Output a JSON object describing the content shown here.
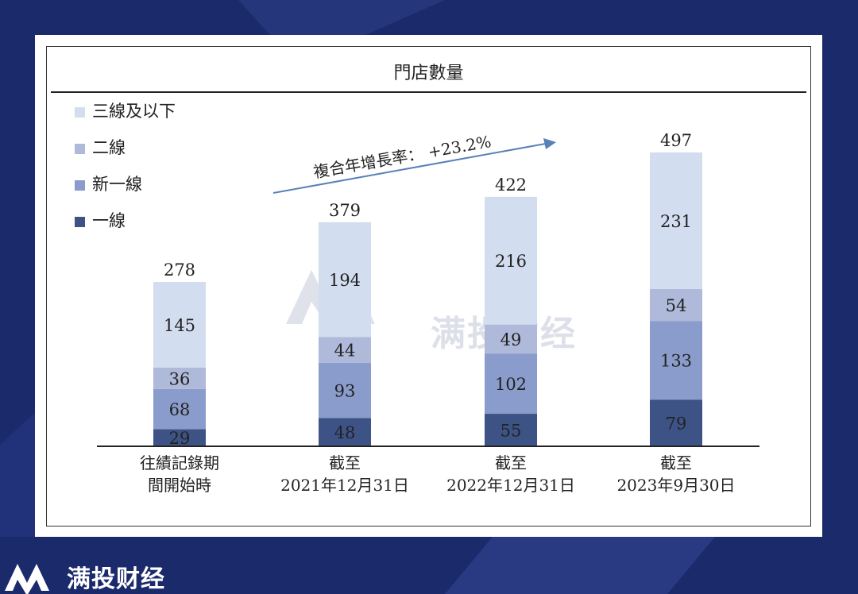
{
  "chart_data": {
    "type": "bar",
    "stacked": true,
    "title": "門店數量",
    "categories": [
      [
        "往績記錄期",
        "間開始時"
      ],
      [
        "截至",
        "2021年12月31日"
      ],
      [
        "截至",
        "2022年12月31日"
      ],
      [
        "截至",
        "2023年9月30日"
      ]
    ],
    "series": [
      {
        "name": "一線",
        "color": "#3d5386",
        "values": [
          29,
          48,
          55,
          79
        ]
      },
      {
        "name": "新一線",
        "color": "#8a9ccb",
        "values": [
          68,
          93,
          102,
          133
        ]
      },
      {
        "name": "二線",
        "color": "#afb9d9",
        "values": [
          36,
          44,
          49,
          54
        ]
      },
      {
        "name": "三線及以下",
        "color": "#d3ddf0",
        "values": [
          145,
          194,
          216,
          231
        ]
      }
    ],
    "totals": [
      278,
      379,
      422,
      497
    ],
    "annotation": "複合年增長率： +23.2%",
    "legend_order": [
      "三線及以下",
      "二線",
      "新一線",
      "一線"
    ],
    "legend_position": "top-left",
    "ylim": [
      0,
      497
    ]
  },
  "brand": {
    "name": "满投财经"
  },
  "colors": {
    "background": "#1b2a6b",
    "arrow": "#5a80b8"
  }
}
